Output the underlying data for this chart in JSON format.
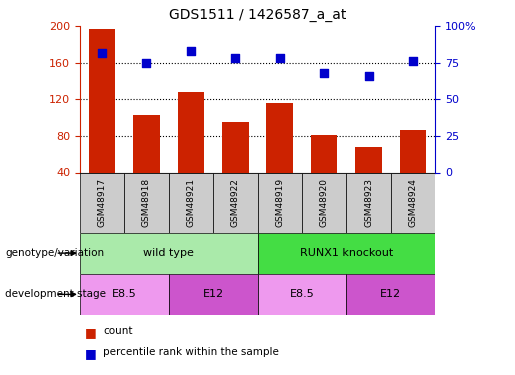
{
  "title": "GDS1511 / 1426587_a_at",
  "samples": [
    "GSM48917",
    "GSM48918",
    "GSM48921",
    "GSM48922",
    "GSM48919",
    "GSM48920",
    "GSM48923",
    "GSM48924"
  ],
  "counts": [
    197,
    103,
    128,
    95,
    116,
    81,
    68,
    86
  ],
  "percentiles": [
    82,
    75,
    83,
    78,
    78,
    68,
    66,
    76
  ],
  "ylim_left": [
    40,
    200
  ],
  "ylim_right": [
    0,
    100
  ],
  "left_ticks": [
    40,
    80,
    120,
    160,
    200
  ],
  "right_ticks": [
    0,
    25,
    50,
    75,
    100
  ],
  "bar_color": "#cc2200",
  "dot_color": "#0000cc",
  "bar_width": 0.6,
  "genotype_groups": [
    {
      "label": "wild type",
      "start": 0,
      "end": 4,
      "color": "#aaeaaa"
    },
    {
      "label": "RUNX1 knockout",
      "start": 4,
      "end": 8,
      "color": "#44dd44"
    }
  ],
  "dev_stage_groups": [
    {
      "label": "E8.5",
      "start": 0,
      "end": 2,
      "color": "#ee99ee"
    },
    {
      "label": "E12",
      "start": 2,
      "end": 4,
      "color": "#cc55cc"
    },
    {
      "label": "E8.5",
      "start": 4,
      "end": 6,
      "color": "#ee99ee"
    },
    {
      "label": "E12",
      "start": 6,
      "end": 8,
      "color": "#cc55cc"
    }
  ],
  "sample_box_color": "#cccccc",
  "legend_count_color": "#cc2200",
  "legend_pct_color": "#0000cc",
  "xlabel_genotype": "genotype/variation",
  "xlabel_devstage": "development stage",
  "grid_yticks": [
    80,
    120,
    160
  ],
  "right_tick_labels": [
    "0",
    "25",
    "50",
    "75",
    "100%"
  ]
}
